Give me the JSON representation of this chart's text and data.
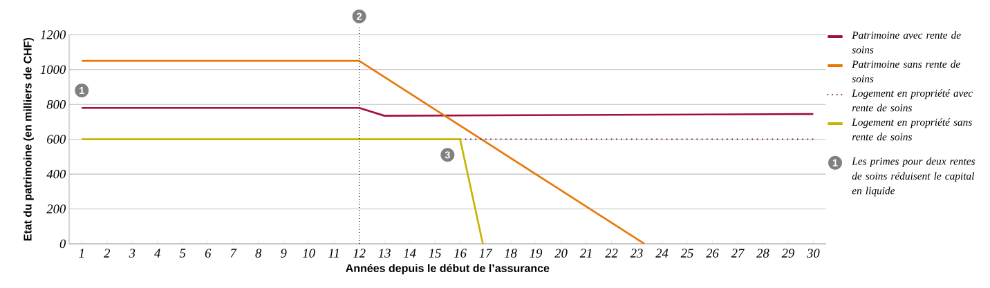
{
  "chart_data": {
    "type": "line",
    "xlabel": "Années depuis le début de l’assurance",
    "ylabel": "Etat du patrimoine (en milliers de CHF)",
    "xlim": [
      0.5,
      30.5
    ],
    "xticks": [
      1,
      2,
      3,
      4,
      5,
      6,
      7,
      8,
      9,
      10,
      11,
      12,
      13,
      14,
      15,
      16,
      17,
      18,
      19,
      20,
      21,
      22,
      23,
      24,
      25,
      26,
      27,
      28,
      29,
      30
    ],
    "ylim": [
      0,
      1200
    ],
    "yticks": [
      0,
      200,
      400,
      600,
      800,
      1000,
      1200
    ],
    "grid": "y",
    "legend": "right",
    "marker": "none",
    "series": [
      {
        "name": "Patrimoine avec rente de soins",
        "color": "#a0103c",
        "line_style": "solid",
        "x": [
          1,
          12,
          13,
          30
        ],
        "values": [
          780,
          780,
          735,
          745
        ]
      },
      {
        "name": "Patrimoine sans rente de soins",
        "color": "#e8780a",
        "line_style": "solid",
        "x": [
          1,
          12,
          23.3
        ],
        "values": [
          1050,
          1050,
          0
        ]
      },
      {
        "name": "Logement en propriété avec rente de soins",
        "color": "#7a1a6a",
        "line_style": "dotted",
        "x": [
          16,
          30
        ],
        "values": [
          600,
          600
        ]
      },
      {
        "name": "Logement en propriété sans rente de soins",
        "color": "#c8b400",
        "line_style": "solid",
        "x": [
          1,
          16,
          16.9
        ],
        "values": [
          600,
          600,
          0
        ]
      }
    ],
    "ref_lines": [
      {
        "axis": "x",
        "value": 12,
        "color": "#000000",
        "line_style": "dotted"
      }
    ],
    "annotations": [
      {
        "text": "1",
        "x": 1,
        "y": 880
      },
      "2",
      {
        "text": "3",
        "x": 15.5,
        "y": 510
      },
      "Les primes pour deux rentes de soins réduisent le capital en liquide"
    ]
  }
}
